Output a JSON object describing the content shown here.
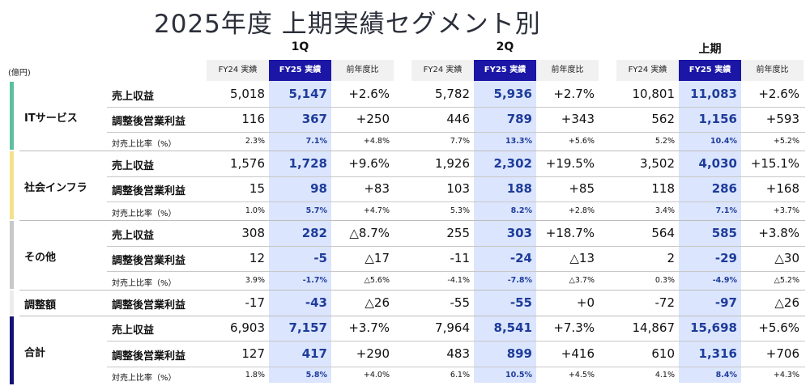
{
  "title": "2025年度 上期実績セグメント別",
  "unit": "(億円)",
  "periods": [
    "1Q",
    "2Q",
    "上期"
  ],
  "col_headers": [
    "FY24 実績",
    "FY25 実績",
    "前年度比"
  ],
  "colors": {
    "header_blue": "#1b16a6",
    "highlight": "#dbe5fd",
    "value_blue": "#1e3c9a"
  },
  "segments": [
    {
      "name": "ITサービス",
      "color": "#5dbfa0",
      "rows": [
        {
          "label": "売上収益",
          "kind": "big",
          "values": [
            "5,018",
            "5,147",
            "+2.6%",
            "5,782",
            "5,936",
            "+2.7%",
            "10,801",
            "11,083",
            "+2.6%"
          ]
        },
        {
          "label": "調整後営業利益",
          "kind": "big",
          "values": [
            "116",
            "367",
            "+250",
            "446",
            "789",
            "+343",
            "562",
            "1,156",
            "+593"
          ]
        },
        {
          "label": "対売上比率（%）",
          "kind": "small",
          "values": [
            "2.3%",
            "7.1%",
            "+4.8%",
            "7.7%",
            "13.3%",
            "+5.6%",
            "5.2%",
            "10.4%",
            "+5.2%"
          ]
        }
      ]
    },
    {
      "name": "社会インフラ",
      "color": "#f3e28a",
      "rows": [
        {
          "label": "売上収益",
          "kind": "big",
          "values": [
            "1,576",
            "1,728",
            "+9.6%",
            "1,926",
            "2,302",
            "+19.5%",
            "3,502",
            "4,030",
            "+15.1%"
          ]
        },
        {
          "label": "調整後営業利益",
          "kind": "big",
          "values": [
            "15",
            "98",
            "+83",
            "103",
            "188",
            "+85",
            "118",
            "286",
            "+168"
          ]
        },
        {
          "label": "対売上比率（%）",
          "kind": "small",
          "values": [
            "1.0%",
            "5.7%",
            "+4.7%",
            "5.3%",
            "8.2%",
            "+2.8%",
            "3.4%",
            "7.1%",
            "+3.7%"
          ]
        }
      ]
    },
    {
      "name": "その他",
      "color": "#c8c8c8",
      "rows": [
        {
          "label": "売上収益",
          "kind": "big",
          "values": [
            "308",
            "282",
            "△8.7%",
            "255",
            "303",
            "+18.7%",
            "564",
            "585",
            "+3.8%"
          ]
        },
        {
          "label": "調整後営業利益",
          "kind": "big",
          "values": [
            "12",
            "-5",
            "△17",
            "-11",
            "-24",
            "△13",
            "2",
            "-29",
            "△30"
          ]
        },
        {
          "label": "対売上比率（%）",
          "kind": "small",
          "values": [
            "3.9%",
            "-1.7%",
            "△5.6%",
            "-4.1%",
            "-7.8%",
            "△3.7%",
            "0.3%",
            "-4.9%",
            "△5.2%"
          ]
        }
      ]
    },
    {
      "name": "調整額",
      "color": "#ececec",
      "rows": [
        {
          "label": "調整後営業利益",
          "kind": "big",
          "values": [
            "-17",
            "-43",
            "△26",
            "-55",
            "-55",
            "+0",
            "-72",
            "-97",
            "△26"
          ]
        }
      ]
    },
    {
      "name": "合計",
      "color": "#121473",
      "rows": [
        {
          "label": "売上収益",
          "kind": "big",
          "values": [
            "6,903",
            "7,157",
            "+3.7%",
            "7,964",
            "8,541",
            "+7.3%",
            "14,867",
            "15,698",
            "+5.6%"
          ]
        },
        {
          "label": "調整後営業利益",
          "kind": "big",
          "values": [
            "127",
            "417",
            "+290",
            "483",
            "899",
            "+416",
            "610",
            "1,316",
            "+706"
          ]
        },
        {
          "label": "対売上比率（%）",
          "kind": "small",
          "values": [
            "1.8%",
            "5.8%",
            "+4.0%",
            "6.1%",
            "10.5%",
            "+4.5%",
            "4.1%",
            "8.4%",
            "+4.3%"
          ]
        }
      ]
    }
  ]
}
